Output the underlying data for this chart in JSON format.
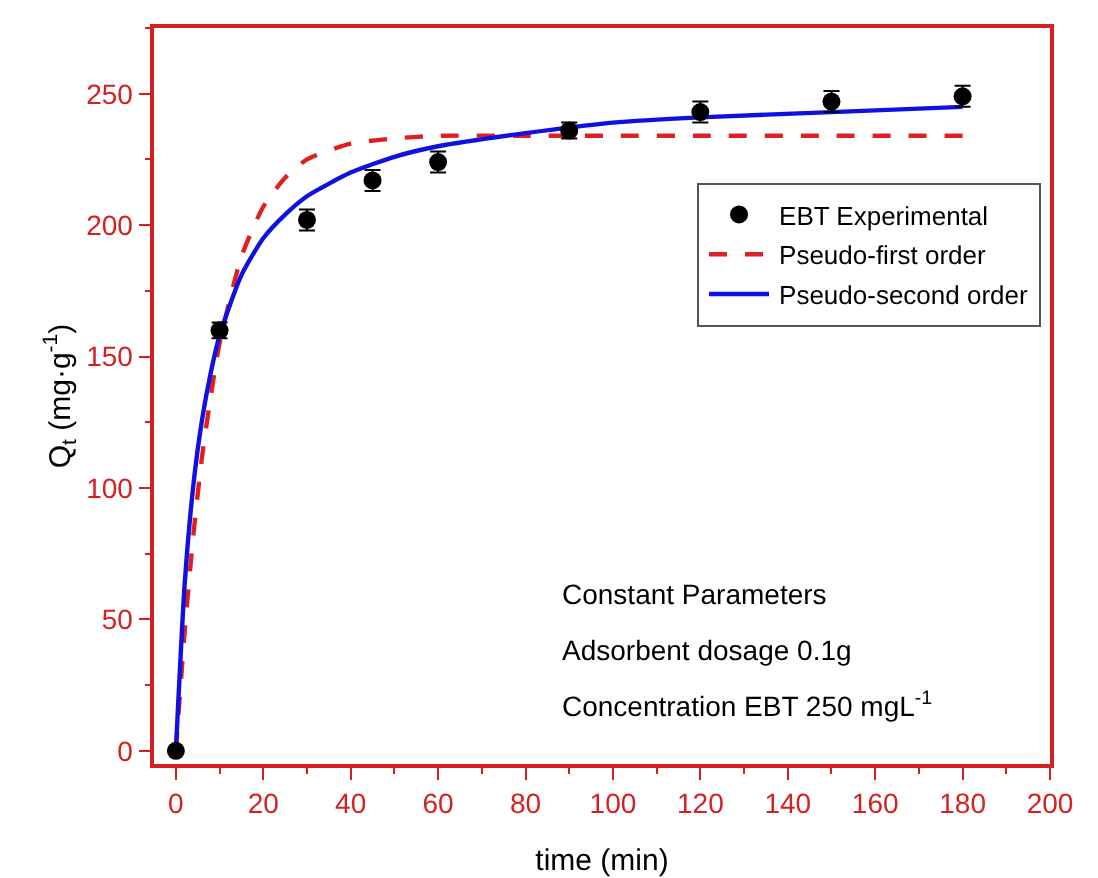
{
  "chart_data": {
    "type": "scatter",
    "xlabel": "time (min)",
    "ylabel": "Q$_{t}$ (mg·g$^{-1}$)",
    "xlim": [
      -5,
      200
    ],
    "xticks": [
      0,
      20,
      40,
      60,
      80,
      100,
      120,
      140,
      160,
      180,
      200
    ],
    "ylim": [
      -5,
      275
    ],
    "yticks": [
      0,
      50,
      100,
      150,
      200,
      250
    ],
    "grid": false,
    "legend": "top right",
    "series": [
      {
        "name": "EBT Experimental",
        "marker": "circle",
        "color": "#000000",
        "x": [
          0,
          10,
          30,
          45,
          60,
          90,
          120,
          150,
          180
        ],
        "values": [
          0,
          160,
          202,
          217,
          224,
          236,
          243,
          247,
          249
        ],
        "errors": [
          null,
          3,
          4,
          4,
          4,
          3,
          4,
          4,
          4
        ]
      },
      {
        "name": "Pseudo-first order",
        "type": "line",
        "line_style": "dashed",
        "color": "#e02020",
        "x": [
          0,
          2,
          4,
          6,
          8,
          10,
          15,
          20,
          25,
          30,
          40,
          50,
          60,
          80,
          100,
          120,
          150,
          180
        ],
        "values": [
          0,
          45,
          82,
          112,
          135,
          155,
          188,
          207,
          218,
          225,
          231,
          233,
          234,
          234,
          234,
          234,
          234,
          234
        ]
      },
      {
        "name": "Pseudo-second order",
        "type": "line",
        "line_style": "solid",
        "color": "#1010e0",
        "x": [
          0,
          2,
          4,
          6,
          8,
          10,
          15,
          20,
          25,
          30,
          40,
          50,
          60,
          80,
          100,
          120,
          150,
          180
        ],
        "values": [
          0,
          63,
          101,
          126,
          144,
          158,
          181,
          195,
          204,
          211,
          220,
          226,
          230,
          235,
          239,
          241,
          243,
          245
        ]
      }
    ],
    "annotations": [
      "Constant Parameters",
      "Adsorbent dosage 0.1g",
      "Concentration EBT 250 mgL$^{-1}$"
    ]
  }
}
